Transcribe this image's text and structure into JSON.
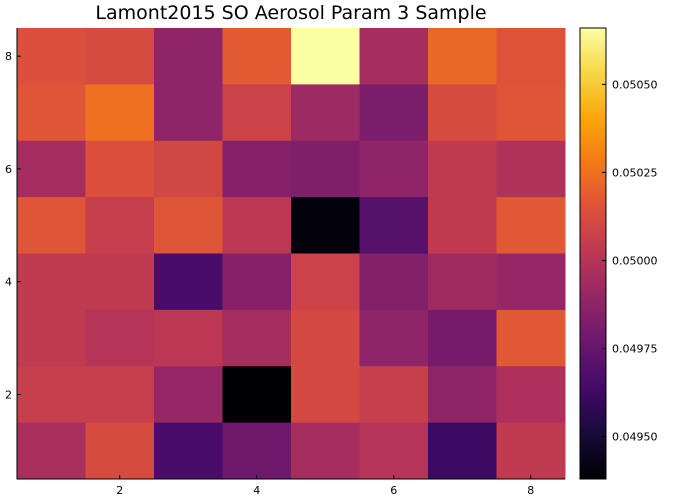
{
  "chart_data": {
    "type": "heatmap",
    "title": "Lamont2015 SO Aerosol Param 3 Sample",
    "xlabel": "",
    "ylabel": "",
    "x_range": [
      0.5,
      8.5
    ],
    "y_range": [
      0.5,
      8.5
    ],
    "x_ticks": [
      2,
      4,
      6,
      8
    ],
    "y_ticks": [
      2,
      4,
      6,
      8
    ],
    "colorbar": {
      "range": [
        0.04938,
        0.05066
      ],
      "ticks": [
        0.0495,
        0.04975,
        0.05,
        0.05025,
        0.0505
      ],
      "tick_labels": [
        "0.04950",
        "0.04975",
        "0.05000",
        "0.05025",
        "0.05050"
      ],
      "colormap": "inferno"
    },
    "grid": false,
    "rows_top_to_bottom": [
      [
        0.05014,
        0.05012,
        0.04988,
        0.05018,
        0.05066,
        0.04995,
        0.05022,
        0.05015
      ],
      [
        0.05016,
        0.05025,
        0.04988,
        0.05008,
        0.04992,
        0.04982,
        0.05012,
        0.05016
      ],
      [
        0.04995,
        0.05014,
        0.0501,
        0.04985,
        0.04983,
        0.04988,
        0.05004,
        0.04998
      ],
      [
        0.05016,
        0.05006,
        0.05016,
        0.05002,
        0.0494,
        0.0497,
        0.05004,
        0.05017
      ],
      [
        0.05004,
        0.05004,
        0.04966,
        0.04985,
        0.05008,
        0.04984,
        0.04993,
        0.0499
      ],
      [
        0.05004,
        0.05,
        0.05002,
        0.04995,
        0.05011,
        0.04988,
        0.0498,
        0.05017
      ],
      [
        0.05006,
        0.05006,
        0.0499,
        0.04938,
        0.05011,
        0.05006,
        0.04988,
        0.04997
      ],
      [
        0.04996,
        0.05012,
        0.04966,
        0.04978,
        0.04995,
        0.05,
        0.04962,
        0.05004
      ]
    ]
  }
}
